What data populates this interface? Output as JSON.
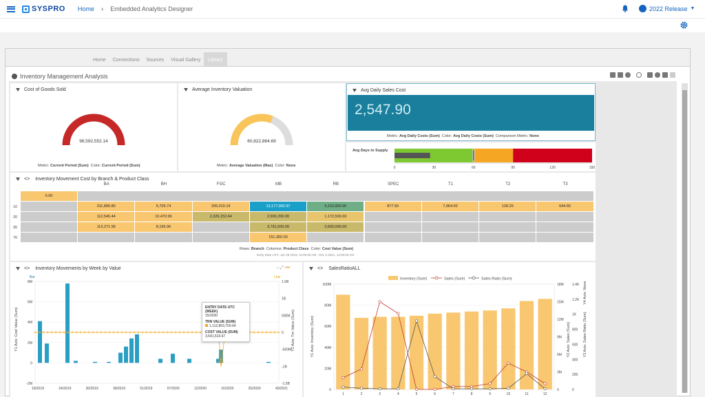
{
  "header": {
    "logo": "SYSPRO",
    "breadcrumb_home": "Home",
    "breadcrumb_current": "Embedded Analytics Designer",
    "release": "2022 Release"
  },
  "tabs": [
    "Home",
    "Connections",
    "Sources",
    "Visual Gallery",
    "Library"
  ],
  "active_tab": "Library",
  "dashboard": {
    "title": "Inventory Management Analysis"
  },
  "gauge1": {
    "title": "Cost of Goods Sold",
    "value_label": "98,592,552.14",
    "fraction": 1.0,
    "color": "#c62828",
    "metric_label": "Metric:",
    "metric": "Current Period (Sum)",
    "color_label": "Color:",
    "color_value": "Current Period (Sum)"
  },
  "gauge2": {
    "title": "Average Inventory Valuation",
    "value_label": "60,822,864.69",
    "fraction": 0.62,
    "color": "#f9c55a",
    "metric_label": "Metric:",
    "metric": "Average Valuation (Max)",
    "color_label": "Color:",
    "color_value": "None"
  },
  "kpi": {
    "title": "Avg Daily Sales Cost",
    "value": "2,547.90",
    "metric_label": "Metric:",
    "metric": "Avg Daily Costs (Sum)",
    "color_label": "Color:",
    "color_value": "Avg Daily Costs (Sum)",
    "comparison_label": "Comparison Metric:",
    "comparison": "None"
  },
  "bullet": {
    "label": "Avg Days to Supply",
    "value": 27,
    "marker": 60,
    "max": 150,
    "ticks": [
      "0",
      "30",
      "60",
      "90",
      "120",
      "150"
    ],
    "bands": [
      {
        "to": 60,
        "color": "#7ec832"
      },
      {
        "to": 90,
        "color": "#f5a623"
      },
      {
        "to": 150,
        "color": "#d0021b"
      }
    ]
  },
  "heatmap": {
    "title": "Inventory Movement Cost by Branch & Product Class",
    "columns": [
      "BA",
      "BH",
      "FGC",
      "MB",
      "RB",
      "SPEC",
      "T1",
      "T2",
      "T3"
    ],
    "rows": [
      "",
      "10",
      "20",
      "30",
      "70"
    ],
    "first_row_cell": "0.00",
    "cells": [
      [
        "311,895.80",
        "5,705.74",
        "205,010.19",
        "13,177,902.97",
        "6,110,000.00",
        "877.50",
        "7,964.00",
        "128.25",
        "644.60"
      ],
      [
        "112,546.44",
        "10,470.96",
        "2,326,152.44",
        "2,900,200.00",
        "1,172,500.00",
        "",
        "",
        "",
        ""
      ],
      [
        "113,271.99",
        "8,195.96",
        "",
        "3,791,500.00",
        "3,600,000.00",
        "",
        "",
        "",
        ""
      ],
      [
        "",
        "",
        "",
        "151,360.00",
        "",
        "",
        "",
        "",
        ""
      ]
    ],
    "rows_label": "Rows:",
    "rows_value": "Branch",
    "cols_label": "Columns:",
    "cols_value": "Product Class",
    "color_label": "Color:",
    "color_value": "Cost Value (Sum)",
    "footer": "Entry Date UTC: Apr 28 2019, 12:00:00 AM - Dec 3 2021, 12:00:00 AM"
  },
  "chart1": {
    "title": "Inventory Movements by Week by Value",
    "legend_bar": "Bar",
    "legend_line": "Line",
    "y1_axis": "Y1 Axis: Cost Value (Sum)",
    "y2_axis": "Y2 Axis: Trn Value (Sum)",
    "y1_ticks": [
      "8M",
      "6M",
      "4M",
      "2M",
      "0",
      "-2M"
    ],
    "y2_ticks": [
      "1.5B",
      "1B",
      "500M",
      "0",
      "-500M",
      "-1B",
      "-1.5B"
    ],
    "x_ticks": [
      "19/2019",
      "24/2019",
      "30/2019",
      "39/2019",
      "51/2019",
      "07/2020",
      "12/2020",
      "16/2020",
      "25/2020",
      "40/2021"
    ],
    "tooltip": {
      "h1": "ENTRY DATE UTC (WEEK)",
      "v1": "15/2020",
      "h2": "TRN VALUE (SUM)",
      "v2": "1,112,803,700.64",
      "h3": "COST VALUE (SUM)",
      "v3": "3,541,510.67"
    }
  },
  "chart_data": {
    "type": "bar",
    "title": "SalesRatioALL",
    "categories": [
      "1",
      "2",
      "3",
      "4",
      "5",
      "6",
      "7",
      "8",
      "9",
      "10",
      "11",
      "12"
    ],
    "series": [
      {
        "name": "Inventory (Sum)",
        "type": "bar",
        "values": [
          90,
          68,
          69,
          69,
          70,
          72,
          73,
          74,
          75,
          77,
          84,
          86
        ]
      },
      {
        "name": "Sales (Sum)",
        "type": "line",
        "values": [
          2.0,
          3.5,
          15.0,
          13.0,
          0.0,
          0.0,
          0.5,
          0.5,
          1.0,
          4.5,
          3.0,
          1.0
        ]
      },
      {
        "name": "Sales Ratio (Sum)",
        "type": "line",
        "values": [
          0.0,
          0.0,
          0.0,
          0.0,
          0.0,
          0.0,
          0.0,
          0.0,
          0.0,
          0.0,
          0.0,
          0.0
        ]
      }
    ],
    "y1_label": "Y1 Axis: Inventory (Sum)",
    "y1_ticks": [
      "100M",
      "80M",
      "60M",
      "40M",
      "20M",
      "0"
    ],
    "y2_label": "Y2 Axis: Sales (Sum)",
    "y2_ticks": [
      "18M",
      "15M",
      "12M",
      "9M",
      "6M",
      "3M",
      "0"
    ],
    "y3_label": "Y3 Axis: Sales Ratio (Sum)",
    "y3_ticks": [
      "1.4K",
      "1.2K",
      "1K",
      "800",
      "600",
      "400",
      "200",
      "0"
    ],
    "y4_label": "Y4 Axis: None",
    "legend": "top"
  }
}
